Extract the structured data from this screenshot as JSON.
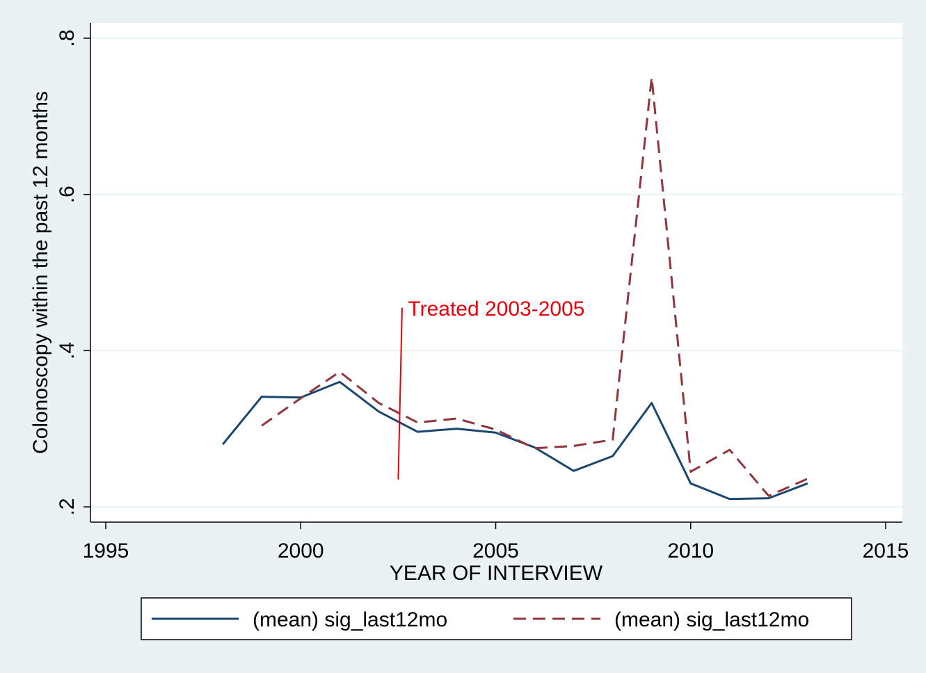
{
  "chart_data": {
    "type": "line",
    "title": "",
    "xlabel": "YEAR OF INTERVIEW",
    "ylabel": "Colonoscopy within the past 12 months",
    "xlim": [
      1995,
      2015
    ],
    "ylim": [
      0.2,
      0.8
    ],
    "x_ticks": [
      1995,
      2000,
      2005,
      2010,
      2015
    ],
    "x_tick_labels": [
      "1995",
      "2000",
      "2005",
      "2010",
      "2015"
    ],
    "y_ticks": [
      0.2,
      0.4,
      0.6,
      0.8
    ],
    "y_tick_labels": [
      ".2",
      ".4",
      ".6",
      ".8"
    ],
    "grid": "horizontal",
    "legend_position": "bottom",
    "series": [
      {
        "name": "(mean) sig_last12mo",
        "style": "solid",
        "color": "#1a476f",
        "x": [
          1998,
          1999,
          2000,
          2001,
          2002,
          2003,
          2004,
          2005,
          2006,
          2007,
          2008,
          2009,
          2010,
          2011,
          2012,
          2013
        ],
        "y": [
          0.28,
          0.341,
          0.34,
          0.36,
          0.322,
          0.296,
          0.3,
          0.295,
          0.276,
          0.246,
          0.265,
          0.333,
          0.23,
          0.21,
          0.211,
          0.23
        ]
      },
      {
        "name": "(mean) sig_last12mo",
        "style": "dashed",
        "color": "#90353b",
        "x": [
          1999,
          2000,
          2001,
          2002,
          2003,
          2004,
          2005,
          2006,
          2007,
          2008,
          2009,
          2010,
          2011,
          2012,
          2013
        ],
        "y": [
          0.304,
          0.339,
          0.373,
          0.333,
          0.308,
          0.313,
          0.299,
          0.275,
          0.278,
          0.286,
          0.75,
          0.245,
          0.273,
          0.214,
          0.236
        ]
      }
    ],
    "annotations": [
      {
        "text": "Treated 2003-2005",
        "color": "#e8000b",
        "line": {
          "x1": 2002.5,
          "y1": 0.235,
          "x2": 2002.6,
          "y2": 0.455
        },
        "text_x": 2002.75,
        "text_y": 0.445
      }
    ]
  }
}
